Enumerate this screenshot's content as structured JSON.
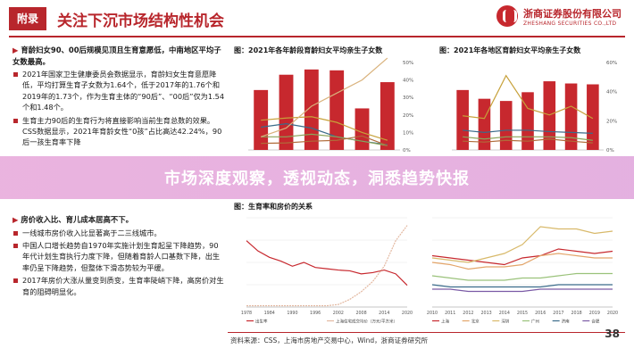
{
  "header": {
    "tag": "附录",
    "title": "关注下沉市场结构性机会",
    "brand_cn": "浙商证券股份有限公司",
    "brand_en": "ZHESHANG SECURITIES CO.,LTD"
  },
  "left": {
    "section1": {
      "heading": "育龄妇女90、00后规模见顶且生育意愿低，中南地区平均子女数最高。",
      "bullets": [
        "2021年国家卫生健康委员会数据显示，育龄妇女生育意愿降低，平均打算生育子女数为1.64个，低于2017年的1.76个和2019年的1.73个，作为生育主体的“90后”、“00后”仅为1.54个和1.48个。",
        "生育主力90后的生育行为将直接影响当前生育总数的效果。CSS数据显示，2021年育龄女性“0孩”占比高达42.24%，90后一孩生育率下降"
      ]
    },
    "section2": {
      "heading": "房价收入比、育儿成本居高不下。",
      "bullets": [
        "一线城市房价收入比显著高于二三线城市。",
        "中国人口增长趋势自1970年实施计划生育起呈下降趋势，90年代计划生育执行力度下降，但随着育龄人口基数下降，出生率仍呈下降趋势，但整体下滑态势较为平缓。",
        "2017年房价大涨从量变到质变，生育率陡峭下降，高房价对生育的阻碍明显化。"
      ]
    }
  },
  "chart_data": [
    {
      "type": "bar",
      "title": "图：2021年各年龄段育龄妇女平均亲生子女数",
      "values": [
        1.37,
        1.72,
        1.84,
        1.82,
        0.95,
        1.55
      ],
      "lines": [
        [
          0.68,
          0.73,
          0.76,
          0.63,
          0.4,
          0.22
        ],
        [
          0.52,
          0.6,
          0.5,
          0.3,
          0.2,
          0.12
        ],
        [
          0.3,
          0.3,
          0.36,
          0.3,
          0.2,
          0.1
        ],
        [
          0.15,
          0.16,
          0.2,
          0.22,
          0.32,
          0.1
        ],
        [
          0.3,
          0.5,
          1.0,
          1.3,
          1.6,
          2.1
        ]
      ],
      "ylim": [
        0,
        2.0
      ],
      "y2lim": [
        0,
        50
      ],
      "y2_ticks": [
        "0%",
        "10%",
        "20%",
        "30%",
        "40%",
        "50%"
      ]
    },
    {
      "type": "bar",
      "title": "图：2021年各地区育龄妇女平均亲生子女数",
      "values": [
        1.37,
        1.17,
        1.12,
        1.32,
        1.57,
        1.52,
        1.5
      ],
      "lines": [
        [
          0.78,
          0.72,
          1.7,
          0.95,
          0.8,
          1.0,
          0.72
        ],
        [
          0.45,
          0.4,
          0.45,
          0.45,
          0.42,
          0.4,
          0.38
        ],
        [
          0.3,
          0.25,
          0.3,
          0.3,
          0.3,
          0.28,
          0.22
        ],
        [
          0.2,
          0.18,
          0.22,
          0.2,
          0.25,
          0.2,
          0.16
        ]
      ],
      "ylim": [
        0,
        2.0
      ],
      "y2lim": [
        0,
        60
      ],
      "y2_ticks": [
        "0%",
        "20%",
        "40%",
        "60%"
      ]
    },
    {
      "type": "line",
      "title": "图：生育率和房价的关系",
      "x": [
        "1978",
        "1981",
        "1984",
        "1987",
        "1990",
        "1993",
        "1996",
        "1999",
        "2002",
        "2005",
        "2008",
        "2011",
        "2014",
        "2017",
        "2020"
      ],
      "series": [
        {
          "name": "出生率",
          "values": [
            2.6,
            2.2,
            1.95,
            1.8,
            1.6,
            1.75,
            1.55,
            1.5,
            1.45,
            1.42,
            1.3,
            1.35,
            1.45,
            1.3,
            0.85
          ]
        },
        {
          "name": "上海住宅成交均价（万元/平方米）",
          "values": [
            0.05,
            0.05,
            0.05,
            0.05,
            0.05,
            0.05,
            0.05,
            0.05,
            0.1,
            0.3,
            0.6,
            1.0,
            1.6,
            2.6,
            3.2
          ]
        }
      ],
      "ylim": [
        0,
        3.5
      ]
    },
    {
      "type": "line",
      "title": "",
      "x": [
        "2010",
        "2011",
        "2012",
        "2013",
        "2014",
        "2015",
        "2016",
        "2017",
        "2018",
        "2019",
        "2020"
      ],
      "series": [
        {
          "name": "上海",
          "values": [
            23,
            22,
            21,
            20,
            19,
            22,
            23,
            26,
            25,
            24,
            25
          ]
        },
        {
          "name": "北京",
          "values": [
            20,
            19,
            17,
            18,
            18,
            19,
            23,
            24,
            23,
            22,
            22
          ]
        },
        {
          "name": "深圳",
          "values": [
            22,
            21,
            20,
            22,
            24,
            28,
            36,
            35,
            35,
            33,
            34
          ]
        },
        {
          "name": "广州",
          "values": [
            14,
            13,
            12,
            12,
            12,
            13,
            13,
            14,
            15,
            15,
            15
          ]
        },
        {
          "name": "济南",
          "values": [
            10,
            9,
            9,
            9,
            9,
            9,
            9,
            10,
            10,
            10,
            10
          ]
        },
        {
          "name": "合肥",
          "values": [
            8,
            8,
            7,
            7,
            7,
            7,
            8,
            8,
            8,
            8,
            8
          ]
        }
      ],
      "ylim": [
        0,
        40
      ]
    }
  ],
  "banner": {
    "text": "市场深度观察，透视动态，洞悉趋势快报"
  },
  "footer": {
    "source": "资料来源：CSS，上海市房地产交易中心，Wind，浙商证券研究所",
    "page": "38"
  },
  "colors": {
    "accent": "#b8262c",
    "bar": "#c7282e",
    "banner": "#e6acdd"
  }
}
